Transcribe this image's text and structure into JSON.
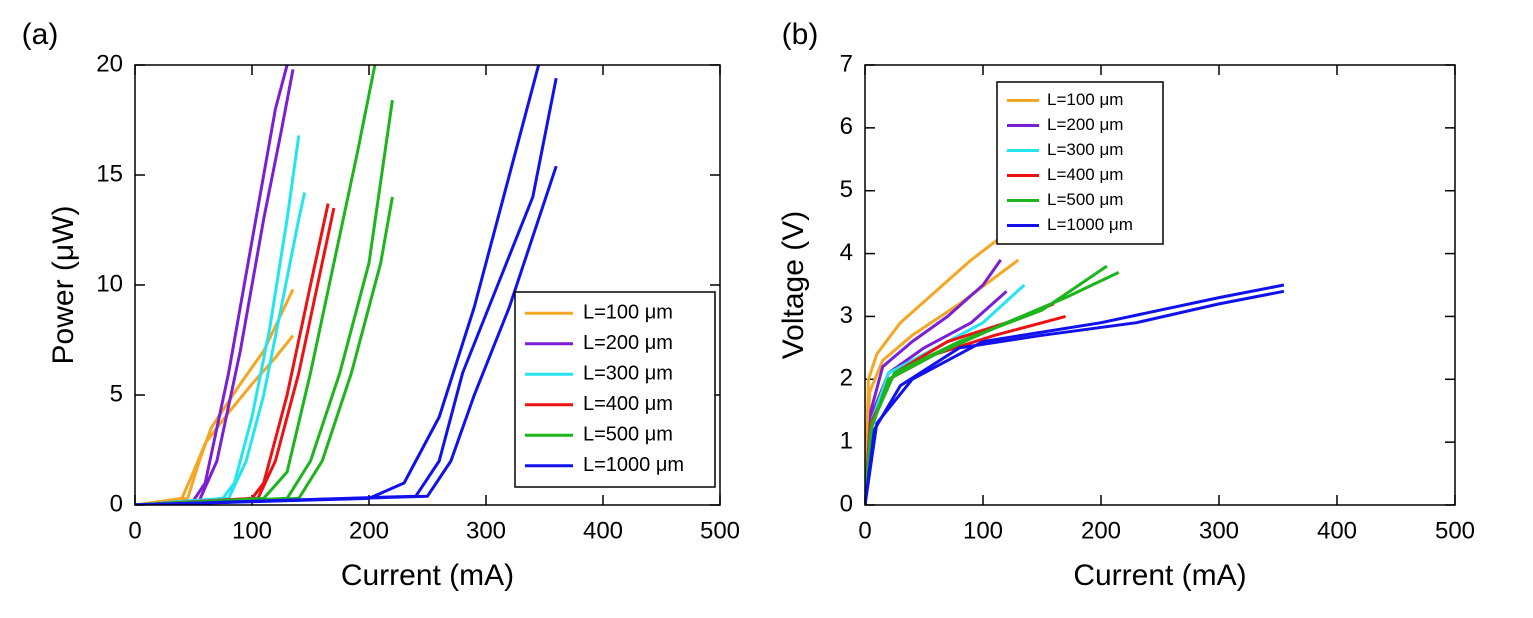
{
  "chart_data": [
    {
      "type": "line",
      "title": "(a)",
      "x_label": "Current (mA)",
      "y_label": "Power (μW)",
      "xlim": [
        0,
        500
      ],
      "ylim": [
        0,
        20
      ],
      "xticks": [
        0,
        100,
        200,
        300,
        400,
        500
      ],
      "yticks": [
        0,
        5,
        10,
        15,
        20
      ],
      "legend": "lower right",
      "series": [
        {
          "name": "L=100 μm",
          "color": "#f5a623",
          "curves": [
            {
              "x": [
                0,
                40,
                50,
                60,
                80,
                100,
                120,
                135
              ],
              "values": [
                0,
                0.3,
                1.5,
                2.8,
                4.2,
                5.5,
                6.7,
                7.7
              ]
            },
            {
              "x": [
                0,
                45,
                55,
                65,
                90,
                110,
                135
              ],
              "values": [
                0,
                0.3,
                2,
                3.5,
                5.5,
                7,
                9.8
              ]
            }
          ]
        },
        {
          "name": "L=200 μm",
          "color": "#7a1fd6",
          "curves": [
            {
              "x": [
                0,
                50,
                60,
                80,
                100,
                120,
                130
              ],
              "values": [
                0,
                0.2,
                1,
                6,
                12,
                18,
                20
              ]
            },
            {
              "x": [
                0,
                55,
                70,
                90,
                110,
                125,
                135
              ],
              "values": [
                0,
                0.2,
                2,
                7,
                13,
                17,
                19.8
              ]
            }
          ]
        },
        {
          "name": "L=300 μm",
          "color": "#22e5f0",
          "curves": [
            {
              "x": [
                0,
                75,
                85,
                100,
                115,
                130,
                140
              ],
              "values": [
                0,
                0.3,
                1,
                4,
                8,
                13,
                16.8
              ]
            },
            {
              "x": [
                0,
                80,
                95,
                110,
                125,
                140,
                145
              ],
              "values": [
                0,
                0.3,
                2,
                5,
                9,
                13,
                14.2
              ]
            }
          ]
        },
        {
          "name": "L=400 μm",
          "color": "#ee1111",
          "curves": [
            {
              "x": [
                0,
                100,
                110,
                130,
                150,
                165
              ],
              "values": [
                0,
                0.3,
                1,
                5,
                10,
                13.7
              ]
            },
            {
              "x": [
                0,
                105,
                120,
                140,
                160,
                170
              ],
              "values": [
                0,
                0.3,
                2,
                6,
                11,
                13.5
              ]
            }
          ]
        },
        {
          "name": "L=500 μm",
          "color": "#1cb51c",
          "curves": [
            {
              "x": [
                0,
                110,
                130,
                150,
                170,
                190,
                205
              ],
              "values": [
                0,
                0.3,
                1.5,
                6,
                11,
                16,
                20
              ]
            },
            {
              "x": [
                0,
                130,
                150,
                175,
                200,
                220
              ],
              "values": [
                0,
                0.3,
                2,
                6,
                11,
                18.4
              ]
            },
            {
              "x": [
                0,
                140,
                160,
                185,
                210,
                220
              ],
              "values": [
                0,
                0.3,
                2,
                6,
                11,
                14
              ]
            }
          ]
        },
        {
          "name": "L=1000 μm",
          "color": "#1111ee",
          "curves": [
            {
              "x": [
                0,
                200,
                230,
                260,
                290,
                320,
                345
              ],
              "values": [
                0,
                0.3,
                1,
                4,
                9,
                15,
                20
              ]
            },
            {
              "x": [
                0,
                240,
                260,
                280,
                310,
                340,
                360
              ],
              "values": [
                0,
                0.4,
                2,
                6,
                10,
                14,
                19.4
              ]
            },
            {
              "x": [
                0,
                250,
                270,
                290,
                320,
                360
              ],
              "values": [
                0,
                0.4,
                2,
                5,
                9,
                15.4
              ]
            }
          ]
        }
      ]
    },
    {
      "type": "line",
      "title": "(b)",
      "x_label": "Current (mA)",
      "y_label": "Voltage (V)",
      "xlim": [
        0,
        500
      ],
      "ylim": [
        0,
        7
      ],
      "xticks": [
        0,
        100,
        200,
        300,
        400,
        500
      ],
      "yticks": [
        0,
        1,
        2,
        3,
        4,
        5,
        6,
        7
      ],
      "legend": "upper center",
      "series": [
        {
          "name": "L=100 μm",
          "color": "#f5a623",
          "curves": [
            {
              "x": [
                0,
                3,
                10,
                30,
                60,
                90,
                125
              ],
              "values": [
                0,
                2,
                2.4,
                2.9,
                3.4,
                3.9,
                4.4
              ]
            },
            {
              "x": [
                0,
                4,
                15,
                40,
                80,
                130
              ],
              "values": [
                0,
                1.8,
                2.3,
                2.7,
                3.2,
                3.9
              ]
            }
          ]
        },
        {
          "name": "L=200 μm",
          "color": "#7a1fd6",
          "curves": [
            {
              "x": [
                0,
                5,
                15,
                40,
                70,
                100,
                115
              ],
              "values": [
                0,
                1.5,
                2.2,
                2.6,
                3,
                3.5,
                3.9
              ]
            },
            {
              "x": [
                0,
                5,
                20,
                50,
                90,
                120
              ],
              "values": [
                0,
                1.4,
                2.1,
                2.5,
                2.9,
                3.4
              ]
            }
          ]
        },
        {
          "name": "L=300 μm",
          "color": "#22e5f0",
          "curves": [
            {
              "x": [
                0,
                5,
                20,
                60,
                100,
                135
              ],
              "values": [
                0,
                1.3,
                2.1,
                2.5,
                2.9,
                3.5
              ]
            }
          ]
        },
        {
          "name": "L=400 μm",
          "color": "#ee1111",
          "curves": [
            {
              "x": [
                0,
                5,
                20,
                60,
                110,
                170
              ],
              "values": [
                0,
                1.2,
                2,
                2.4,
                2.7,
                3
              ]
            },
            {
              "x": [
                0,
                5,
                25,
                70,
                120,
                160
              ],
              "values": [
                0,
                1.3,
                2.1,
                2.6,
                2.9,
                3.2
              ]
            }
          ]
        },
        {
          "name": "L=500 μm",
          "color": "#1cb51c",
          "curves": [
            {
              "x": [
                0,
                5,
                20,
                60,
                120,
                170,
                215
              ],
              "values": [
                0,
                1.2,
                2,
                2.4,
                2.9,
                3.3,
                3.7
              ]
            },
            {
              "x": [
                0,
                6,
                25,
                80,
                150,
                205
              ],
              "values": [
                0,
                1.3,
                2.1,
                2.6,
                3.1,
                3.8
              ]
            }
          ]
        },
        {
          "name": "L=1000 μm",
          "color": "#1111ee",
          "curves": [
            {
              "x": [
                0,
                8,
                30,
                80,
                150,
                230,
                300,
                355
              ],
              "values": [
                0,
                1.2,
                1.9,
                2.5,
                2.7,
                2.9,
                3.2,
                3.4
              ]
            },
            {
              "x": [
                0,
                10,
                40,
                100,
                200,
                300,
                355
              ],
              "values": [
                0,
                1.3,
                2,
                2.6,
                2.9,
                3.3,
                3.5
              ]
            }
          ]
        }
      ]
    }
  ]
}
